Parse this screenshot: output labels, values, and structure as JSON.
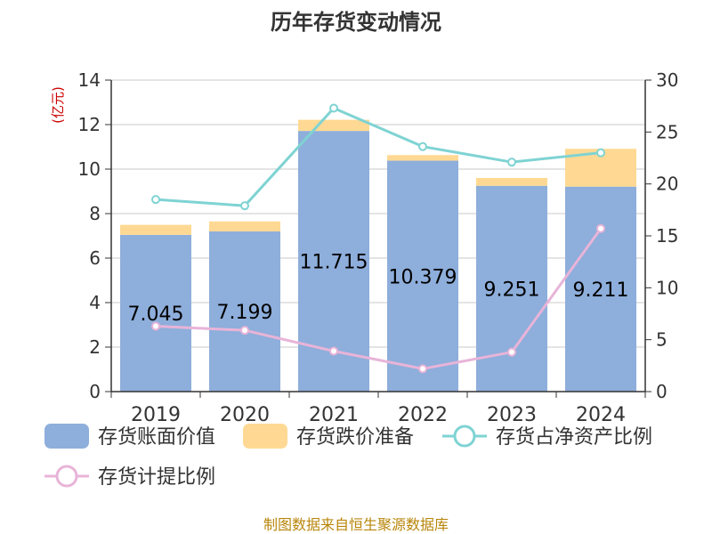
{
  "chart_data": {
    "type": "bar",
    "title": "历年存货变动情况",
    "y_left_unit": "(亿元)",
    "y_left_ticks": [
      0,
      2,
      4,
      6,
      8,
      10,
      12,
      14
    ],
    "y_right_ticks": [
      0,
      5,
      10,
      15,
      20,
      25,
      30
    ],
    "ylim_left": [
      0,
      14
    ],
    "ylim_right": [
      0,
      30
    ],
    "categories": [
      "2019",
      "2020",
      "2021",
      "2022",
      "2023",
      "2024"
    ],
    "grid": true,
    "legend_position": "bottom",
    "series": [
      {
        "name": "存货账面价值",
        "type": "bar",
        "stack": "inventory",
        "axis": "left",
        "values": [
          7.045,
          7.199,
          11.715,
          10.379,
          9.251,
          9.211
        ],
        "labels": [
          "7.045",
          "7.199",
          "11.715",
          "10.379",
          "9.251",
          "9.211"
        ],
        "color": "#8eaedb"
      },
      {
        "name": "存货跌价准备",
        "type": "bar",
        "stack": "inventory",
        "axis": "left",
        "values": [
          0.45,
          0.45,
          0.5,
          0.25,
          0.35,
          1.7
        ],
        "color": "#ffd993"
      },
      {
        "name": "存货占净资产比例",
        "type": "line",
        "axis": "right",
        "values": [
          18.5,
          17.9,
          27.3,
          23.6,
          22.1,
          23.0
        ],
        "color": "#7fd3d3"
      },
      {
        "name": "存货计提比例",
        "type": "line",
        "axis": "right",
        "values": [
          6.3,
          5.9,
          3.9,
          2.2,
          3.8,
          15.7
        ],
        "color": "#e8b4d8"
      }
    ]
  },
  "source_text": "制图数据来自恒生聚源数据库"
}
